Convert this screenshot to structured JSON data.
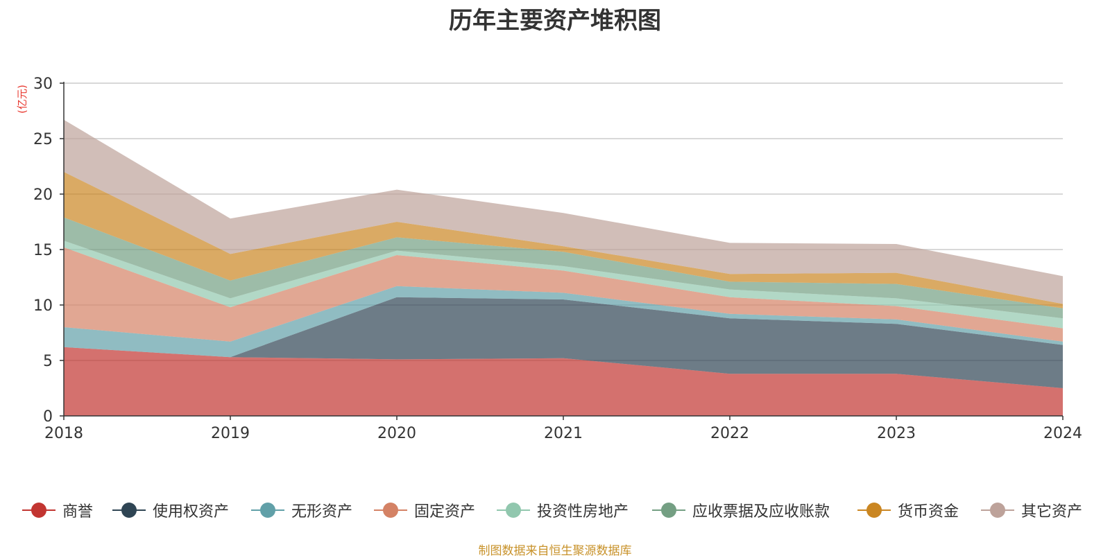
{
  "chart_data": {
    "type": "area",
    "stacked": true,
    "title": "历年主要资产堆积图",
    "ylabel": "(亿元)",
    "xlabel": "",
    "ylim": [
      0,
      30
    ],
    "yticks": [
      0,
      5,
      10,
      15,
      20,
      25,
      30
    ],
    "categories": [
      "2018",
      "2019",
      "2020",
      "2021",
      "2022",
      "2023",
      "2024"
    ],
    "grid": true,
    "legend_position": "bottom",
    "series": [
      {
        "name": "商誉",
        "color": "#c23531",
        "values": [
          6.2,
          5.3,
          5.1,
          5.2,
          3.8,
          3.8,
          2.5
        ]
      },
      {
        "name": "使用权资产",
        "color": "#2f4554",
        "values": [
          0.0,
          0.0,
          5.6,
          5.3,
          5.0,
          4.5,
          3.9
        ]
      },
      {
        "name": "无形资产",
        "color": "#61a0a8",
        "values": [
          1.8,
          1.4,
          1.0,
          0.6,
          0.4,
          0.4,
          0.3
        ]
      },
      {
        "name": "固定资产",
        "color": "#d48265",
        "values": [
          7.2,
          3.1,
          2.8,
          2.0,
          1.5,
          1.2,
          1.2
        ]
      },
      {
        "name": "投资性房地产",
        "color": "#91c7ae",
        "values": [
          0.6,
          0.8,
          0.4,
          0.4,
          0.7,
          0.7,
          0.9
        ]
      },
      {
        "name": "应收票据及应收账款",
        "color": "#749f83",
        "values": [
          2.1,
          1.6,
          1.2,
          1.3,
          0.7,
          1.3,
          0.9
        ]
      },
      {
        "name": "货币资金",
        "color": "#ca8622",
        "values": [
          4.1,
          2.4,
          1.4,
          0.5,
          0.7,
          1.0,
          0.4
        ]
      },
      {
        "name": "其它资产",
        "color": "#bda29a",
        "values": [
          4.7,
          3.2,
          2.9,
          3.0,
          2.8,
          2.6,
          2.5
        ]
      }
    ]
  },
  "source_note": "制图数据来自恒生聚源数据库"
}
